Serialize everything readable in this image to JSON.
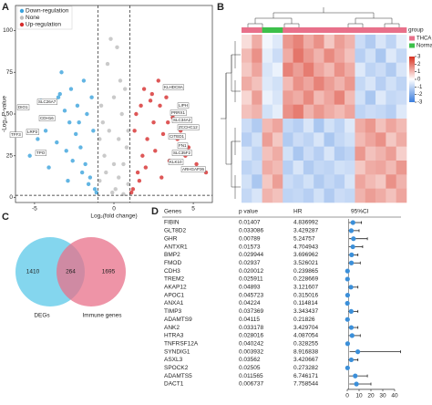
{
  "chart_data": [
    {
      "type": "volcano",
      "panel": "A",
      "xlabel": "Log₂(fold change)",
      "ylabel": "-Log₁₀P-value",
      "xlim": [
        -6.2,
        6.2
      ],
      "xticks": [
        -5,
        0,
        5
      ],
      "ylim": [
        -3,
        103
      ],
      "yticks": [
        0,
        25,
        50,
        75,
        100
      ],
      "thresholds": {
        "x": [
          -1,
          1
        ],
        "y": 1.3
      },
      "series": [
        {
          "name": "Down-regulation",
          "color": "#3ba3dc",
          "x": [
            -1.2,
            -1.5,
            -1.8,
            -2.1,
            -2.4,
            -2.8,
            -3.1,
            -3.5,
            -3.9,
            -4.3,
            -4.8,
            -5.3,
            -1.4,
            -1.9,
            -2.3,
            -2.7,
            -3.3,
            -1.1,
            -1.6,
            -2.0,
            -2.6,
            -3.0,
            -3.6,
            -4.1,
            -1.3,
            -1.7,
            -2.2,
            -2.9,
            -3.4,
            -4.6
          ],
          "values": [
            5,
            12,
            20,
            30,
            38,
            45,
            52,
            60,
            48,
            40,
            35,
            25,
            60,
            70,
            55,
            65,
            75,
            3,
            8,
            15,
            22,
            28,
            33,
            18,
            40,
            50,
            45,
            10,
            62,
            58
          ]
        },
        {
          "name": "None",
          "color": "#bdbdbd",
          "x": [
            -0.9,
            -0.6,
            -0.3,
            0,
            0.3,
            0.6,
            0.9,
            -0.8,
            -0.4,
            0.2,
            0.5,
            0.8,
            -0.5,
            0.1,
            0.4,
            -0.7,
            0.7,
            -0.2,
            0.0,
            0.3,
            -0.1,
            0.6,
            -0.9,
            0.9
          ],
          "values": [
            10,
            25,
            40,
            60,
            35,
            20,
            8,
            55,
            80,
            90,
            50,
            30,
            15,
            5,
            70,
            45,
            65,
            95,
            20,
            12,
            3,
            2,
            35,
            40
          ]
        },
        {
          "name": "Up-regulation",
          "color": "#d62d2d",
          "x": [
            1.2,
            1.5,
            1.8,
            2.1,
            2.5,
            2.9,
            3.3,
            3.8,
            4.2,
            4.7,
            5.2,
            1.4,
            1.9,
            2.3,
            2.8,
            3.4,
            4.0,
            1.1,
            1.6,
            2.0,
            2.6,
            3.1,
            3.7,
            4.5,
            1.3,
            1.7,
            2.4,
            3.0,
            3.5,
            5.8
          ],
          "values": [
            5,
            15,
            25,
            35,
            45,
            55,
            60,
            50,
            40,
            30,
            20,
            50,
            65,
            58,
            70,
            45,
            35,
            3,
            10,
            18,
            28,
            38,
            48,
            25,
            40,
            55,
            62,
            12,
            22,
            15
          ]
        }
      ],
      "gene_labels": [
        "DIO1",
        "SLC26A7",
        "CDH16",
        "TFF3",
        "LRP2",
        "TPO",
        "KLHDC8A",
        "LIPH",
        "PRRX1",
        "SLC34A2",
        "ZCCHC12",
        "CITED1",
        "FN1",
        "SLC35F2",
        "KLK10",
        "ARHGAP36"
      ]
    },
    {
      "type": "heatmap",
      "panel": "B",
      "legend_title": "group",
      "groups": [
        "THCA",
        "THCA",
        "Normal",
        "Normal",
        "THCA",
        "THCA",
        "THCA",
        "THCA",
        "THCA",
        "THCA",
        "THCA",
        "THCA",
        "THCA",
        "THCA",
        "THCA",
        "THCA"
      ],
      "group_colors": {
        "THCA": "#e8708a",
        "Normal": "#3cc04a"
      },
      "colorbar_ticks": [
        3,
        2,
        1,
        0,
        -1,
        -2,
        -3
      ],
      "low_color": "#3b7ddd",
      "mid_color": "#ffffff",
      "high_color": "#d7301f",
      "values": [
        [
          0.5,
          1.2,
          -0.2,
          -0.5,
          1.5,
          1.8,
          1.2,
          1.6,
          0.8,
          1.4,
          1.1,
          -0.8,
          -1.2,
          -0.6,
          -1.0,
          -0.4
        ],
        [
          1.0,
          1.6,
          -0.4,
          -0.8,
          1.2,
          2.0,
          1.5,
          1.1,
          1.7,
          1.3,
          0.9,
          -1.1,
          -0.7,
          -1.3,
          -0.5,
          -0.9
        ],
        [
          0.8,
          1.3,
          -0.6,
          -0.3,
          1.8,
          1.4,
          1.9,
          1.3,
          1.0,
          1.6,
          1.2,
          -0.5,
          -1.0,
          -0.8,
          -1.2,
          -0.6
        ],
        [
          1.2,
          0.9,
          -0.5,
          -0.7,
          1.0,
          1.6,
          1.3,
          1.8,
          1.4,
          1.1,
          1.5,
          -0.9,
          -0.6,
          -1.1,
          -0.7,
          -1.0
        ],
        [
          0.6,
          1.4,
          -0.3,
          -0.6,
          1.4,
          1.2,
          1.7,
          1.0,
          1.3,
          1.8,
          1.0,
          -0.7,
          -1.3,
          -0.5,
          -0.9,
          -0.8
        ],
        [
          0.9,
          1.1,
          -0.7,
          -0.4,
          1.6,
          1.9,
          1.1,
          1.5,
          1.2,
          1.0,
          1.3,
          -1.0,
          -0.8,
          -0.9,
          -1.1,
          -0.5
        ],
        [
          -0.8,
          -1.2,
          1.0,
          1.3,
          -0.9,
          -1.1,
          -0.6,
          -1.3,
          -0.7,
          -1.0,
          -0.5,
          1.2,
          1.5,
          0.9,
          1.3,
          1.0
        ],
        [
          -1.1,
          -0.7,
          1.4,
          0.8,
          -1.2,
          -0.8,
          -1.0,
          -0.6,
          -1.3,
          -0.9,
          -0.7,
          1.0,
          1.3,
          1.6,
          0.8,
          1.2
        ],
        [
          -0.6,
          -1.0,
          0.9,
          1.2,
          -0.7,
          -1.3,
          -0.8,
          -1.1,
          -0.6,
          -1.2,
          -1.0,
          1.5,
          0.9,
          1.1,
          1.4,
          0.7
        ],
        [
          -1.0,
          -0.8,
          1.2,
          1.0,
          -1.1,
          -0.6,
          -1.2,
          -0.9,
          -1.0,
          -0.7,
          -0.8,
          0.8,
          1.2,
          1.3,
          1.0,
          1.5
        ],
        [
          -0.7,
          -1.3,
          0.8,
          1.4,
          -0.8,
          -1.0,
          -0.7,
          -1.2,
          -0.9,
          -1.1,
          -0.6,
          1.3,
          1.0,
          0.8,
          1.6,
          1.1
        ],
        [
          -0.9,
          -0.6,
          1.1,
          0.9,
          -1.0,
          -0.9,
          -1.1,
          -0.7,
          -1.2,
          -0.8,
          -0.9,
          1.1,
          1.4,
          1.2,
          0.9,
          1.3
        ]
      ]
    },
    {
      "type": "venn",
      "panel": "C",
      "sets": [
        {
          "name": "DEGs",
          "color": "#5bc8e8",
          "only": 1410
        },
        {
          "name": "Immune genes",
          "color": "#e8708a",
          "only": 1695
        }
      ],
      "intersection": 264
    },
    {
      "type": "forest",
      "panel": "D",
      "columns": [
        "Genes",
        "p value",
        "HR",
        "95%CI"
      ],
      "xlim": [
        0,
        40
      ],
      "xticks": [
        0,
        10,
        20,
        30,
        40
      ],
      "reference": 1,
      "color": "#3b8fd9",
      "genes": [
        "FIBIN",
        "GLT8D2",
        "GHR",
        "ANTXR1",
        "BMP2",
        "FMOD",
        "CDH3",
        "TREM2",
        "AKAP12",
        "APOC1",
        "ANXA1",
        "TIMP3",
        "ADAMTS9",
        "ANK2",
        "HTRA3",
        "TNFRSF12A",
        "SYNDIG1",
        "ASXL3",
        "SPOCK2",
        "ADAMTS5",
        "DACT1"
      ],
      "p": [
        0.01407,
        0.033086,
        0.00789,
        0.01573,
        0.029944,
        0.02937,
        0.020012,
        0.025911,
        0.04893,
        0.045723,
        0.04224,
        0.037369,
        0.04115,
        0.033178,
        0.028016,
        0.040242,
        0.003932,
        0.03562,
        0.02505,
        0.011565,
        0.006737
      ],
      "hr": [
        4.836992,
        3.429287,
        5.24757,
        4.704943,
        3.696962,
        3.526021,
        0.239865,
        0.228669,
        3.121607,
        0.315016,
        0.114814,
        3.343437,
        0.21826,
        3.429704,
        4.087054,
        0.328255,
        8.916838,
        3.420667,
        0.273282,
        6.746171,
        7.758544
      ],
      "lower": [
        1.4,
        1.1,
        1.6,
        1.4,
        1.2,
        1.1,
        0.08,
        0.06,
        1.0,
        0.1,
        0.02,
        1.1,
        0.05,
        1.1,
        1.3,
        0.1,
        2.0,
        1.1,
        0.08,
        1.6,
        1.8
      ],
      "upper": [
        12,
        10,
        17,
        13,
        9,
        11,
        0.8,
        0.8,
        9,
        0.9,
        0.7,
        9,
        0.8,
        9,
        11,
        0.9,
        45,
        9,
        0.9,
        17,
        20
      ]
    }
  ]
}
